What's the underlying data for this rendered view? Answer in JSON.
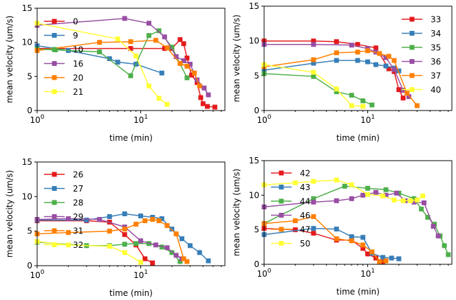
{
  "chart_data": [
    {
      "type": "line",
      "xlabel": "time (min)",
      "ylabel": "mean velocity (um/s)",
      "xscale": "log",
      "xlim": [
        1,
        65
      ],
      "ylim": [
        0,
        15
      ],
      "xticks": [
        1,
        10
      ],
      "yticks": [
        0,
        5,
        10,
        15
      ],
      "legend": "upper-left",
      "series": [
        {
          "name": "0",
          "color": "#e41a1c",
          "x": [
            1,
            8,
            17,
            20,
            24,
            26,
            28,
            31,
            35,
            38,
            40,
            44,
            52
          ],
          "y": [
            9.1,
            9.1,
            9.1,
            9.1,
            10.4,
            9.8,
            7.7,
            5.2,
            4.1,
            1.9,
            1.0,
            0.6,
            0.5
          ]
        },
        {
          "name": "9",
          "color": "#377eb8",
          "x": [
            1,
            2,
            5,
            6,
            9,
            16
          ],
          "y": [
            9.5,
            8.8,
            7.6,
            7.1,
            6.8,
            5.5
          ]
        },
        {
          "name": "10",
          "color": "#4daf4a",
          "x": [
            1,
            1.5,
            4,
            8,
            12,
            15,
            20,
            28
          ],
          "y": [
            9.0,
            8.9,
            8.6,
            5.1,
            11.0,
            11.7,
            9.3,
            4.8
          ]
        },
        {
          "name": "16",
          "color": "#984ea3",
          "x": [
            1,
            7,
            12,
            17,
            22,
            26,
            30,
            35,
            41,
            45
          ],
          "y": [
            12.5,
            13.5,
            12.8,
            10.8,
            7.9,
            7.3,
            6.8,
            4.5,
            3.3,
            2.3
          ]
        },
        {
          "name": "20",
          "color": "#ff7f00",
          "x": [
            1,
            4,
            8,
            14,
            18,
            24,
            28,
            33,
            37
          ],
          "y": [
            8.8,
            10.0,
            10.1,
            10.3,
            9.2,
            6.9,
            6.5,
            5.5,
            3.6
          ]
        },
        {
          "name": "21",
          "color": "#ffff33",
          "x": [
            1,
            6,
            9,
            12,
            15,
            18
          ],
          "y": [
            12.8,
            10.5,
            8.0,
            3.6,
            1.8,
            0.9
          ]
        }
      ]
    },
    {
      "type": "line",
      "xlabel": "time (min)",
      "ylabel": "mean velocity (um/s)",
      "xscale": "log",
      "xlim": [
        1,
        65
      ],
      "ylim": [
        0,
        15
      ],
      "xticks": [
        1,
        10
      ],
      "yticks": [
        0,
        5,
        10,
        15
      ],
      "legend": "upper-right",
      "series": [
        {
          "name": "33",
          "color": "#e41a1c",
          "x": [
            1,
            3,
            5,
            8,
            12,
            16,
            18,
            20,
            22
          ],
          "y": [
            10.0,
            10.0,
            9.9,
            9.5,
            9.0,
            6.0,
            5.6,
            3.0,
            1.8
          ]
        },
        {
          "name": "34",
          "color": "#377eb8",
          "x": [
            1,
            3,
            5,
            8,
            10,
            12,
            15,
            18,
            20
          ],
          "y": [
            5.8,
            6.8,
            7.2,
            7.2,
            7.0,
            6.6,
            6.4,
            6.1,
            5.7
          ]
        },
        {
          "name": "35",
          "color": "#4daf4a",
          "x": [
            1,
            3,
            5,
            7,
            9,
            11
          ],
          "y": [
            5.3,
            4.9,
            2.7,
            2.2,
            1.4,
            0.8
          ]
        },
        {
          "name": "36",
          "color": "#984ea3",
          "x": [
            1,
            3,
            7,
            10,
            12,
            15,
            18,
            22,
            25
          ],
          "y": [
            9.5,
            9.5,
            9.4,
            8.9,
            8.4,
            7.6,
            5.9,
            2.9,
            2.0
          ]
        },
        {
          "name": "37",
          "color": "#ff7f00",
          "x": [
            1,
            3,
            5,
            8,
            10,
            13,
            16,
            18,
            24,
            30
          ],
          "y": [
            6.3,
            7.3,
            8.3,
            8.4,
            8.6,
            8.2,
            7.8,
            7.2,
            2.5,
            0.7
          ]
        },
        {
          "name": "40",
          "color": "#ffff33",
          "x": [
            1,
            3,
            5,
            7,
            9
          ],
          "y": [
            6.6,
            5.5,
            3.1,
            0.7,
            0.6
          ]
        }
      ]
    },
    {
      "type": "line",
      "xlabel": "time (min)",
      "ylabel": "mean velocity (um/s)",
      "xscale": "log",
      "xlim": [
        1,
        65
      ],
      "ylim": [
        0,
        15
      ],
      "xticks": [
        1,
        10
      ],
      "yticks": [
        0,
        5,
        10,
        15
      ],
      "legend": "upper-left",
      "series": [
        {
          "name": "26",
          "color": "#e41a1c",
          "x": [
            1,
            3,
            5,
            7,
            9,
            11,
            13
          ],
          "y": [
            6.5,
            6.5,
            6.3,
            4.5,
            3.0,
            1.0,
            0.4
          ]
        },
        {
          "name": "27",
          "color": "#377eb8",
          "x": [
            1,
            3,
            5,
            7,
            10,
            13,
            16,
            20,
            25,
            30,
            37,
            45
          ],
          "y": [
            6.6,
            6.6,
            7.1,
            7.5,
            7.2,
            7.0,
            6.8,
            5.3,
            3.9,
            2.9,
            1.9,
            0.7
          ]
        },
        {
          "name": "28",
          "color": "#4daf4a",
          "x": [
            1,
            3,
            5,
            7,
            9,
            12,
            16,
            20,
            24
          ],
          "y": [
            3.4,
            2.9,
            2.9,
            3.1,
            3.2,
            3.2,
            2.7,
            1.9,
            0.6
          ]
        },
        {
          "name": "29",
          "color": "#984ea3",
          "x": [
            1,
            2,
            4,
            7,
            10,
            14,
            18,
            22,
            25
          ],
          "y": [
            6.7,
            6.8,
            6.7,
            5.6,
            3.6,
            3.0,
            2.6,
            1.5,
            1.0
          ]
        },
        {
          "name": "31",
          "color": "#ff7f00",
          "x": [
            1,
            2,
            5,
            7,
            9,
            11,
            13,
            15,
            18,
            22,
            26,
            28
          ],
          "y": [
            4.6,
            4.8,
            5.0,
            5.3,
            6.0,
            6.5,
            6.7,
            6.5,
            5.8,
            4.6,
            1.0,
            0.6
          ]
        },
        {
          "name": "32",
          "color": "#ffff33",
          "x": [
            1,
            2,
            5,
            7,
            10
          ],
          "y": [
            3.5,
            3.0,
            2.8,
            1.9,
            0.5
          ]
        }
      ]
    },
    {
      "type": "line",
      "xlabel": "time (min)",
      "ylabel": "mean velocity (um/s)",
      "xscale": "log",
      "xlim": [
        1,
        65
      ],
      "ylim": [
        0,
        15
      ],
      "xticks": [
        1,
        10
      ],
      "yticks": [
        0,
        5,
        10,
        15
      ],
      "legend": "upper-left",
      "series": [
        {
          "name": "42",
          "color": "#e41a1c",
          "x": [
            1,
            2,
            3,
            5,
            7,
            9,
            10,
            12,
            14
          ],
          "y": [
            5.2,
            5.0,
            4.5,
            3.5,
            3.5,
            2.3,
            1.5,
            0.9,
            0.4
          ]
        },
        {
          "name": "43",
          "color": "#377eb8",
          "x": [
            1,
            3,
            5,
            7,
            9,
            11,
            14,
            17,
            20
          ],
          "y": [
            4.3,
            5.2,
            5.1,
            4.0,
            3.9,
            1.6,
            1.0,
            0.9,
            0.8
          ]
        },
        {
          "name": "44",
          "color": "#4daf4a",
          "x": [
            1,
            3,
            6,
            10,
            15,
            20,
            28,
            33,
            38,
            44,
            50,
            55,
            60
          ],
          "y": [
            5.9,
            9.5,
            11.3,
            11.0,
            10.8,
            10.3,
            9.5,
            8.0,
            6.8,
            5.8,
            4.1,
            2.7,
            1.4
          ]
        },
        {
          "name": "46",
          "color": "#984ea3",
          "x": [
            1,
            3,
            5,
            7,
            9,
            12,
            15,
            19,
            23,
            28,
            35,
            43,
            48
          ],
          "y": [
            8.3,
            9.0,
            9.2,
            9.5,
            10.0,
            10.4,
            10.0,
            10.3,
            9.2,
            9.0,
            8.9,
            5.5,
            4.1
          ]
        },
        {
          "name": "47",
          "color": "#ff7f00",
          "x": [
            1,
            2,
            3,
            5,
            7,
            9,
            11,
            13,
            15
          ],
          "y": [
            5.9,
            6.3,
            6.9,
            3.7,
            3.4,
            2.8,
            1.8,
            0.4,
            0.5
          ]
        },
        {
          "name": "50",
          "color": "#ffff33",
          "x": [
            1,
            2,
            3,
            5,
            7,
            10,
            14,
            18,
            22,
            26,
            30,
            34
          ],
          "y": [
            11.5,
            11.8,
            12.0,
            12.2,
            11.5,
            10.1,
            9.9,
            9.3,
            9.2,
            9.2,
            9.3,
            9.9
          ]
        }
      ]
    }
  ]
}
